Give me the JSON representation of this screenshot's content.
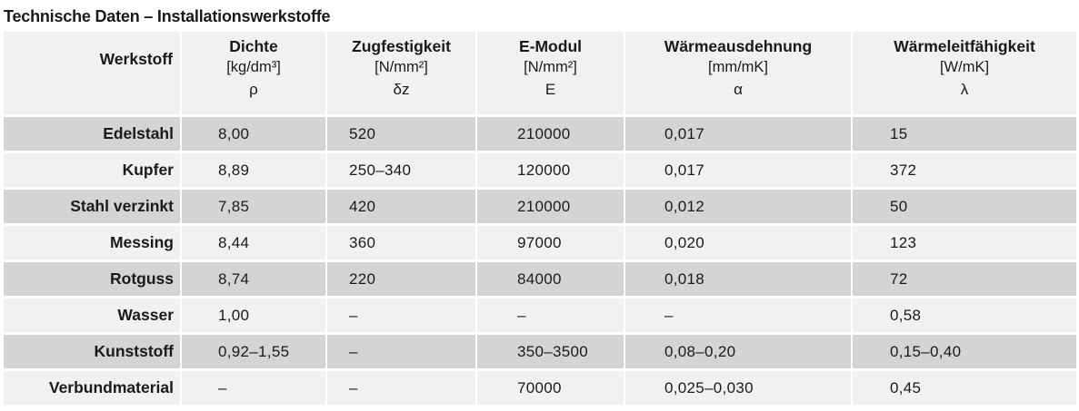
{
  "title": "Technische Daten – Installationswerkstoffe",
  "header": {
    "material": "Werkstoff",
    "columns": [
      {
        "name": "Dichte",
        "unit": "[kg/dm³]",
        "symbol": "ρ"
      },
      {
        "name": "Zugfestigkeit",
        "unit": "[N/mm²]",
        "symbol": "δz"
      },
      {
        "name": "E-Modul",
        "unit": "[N/mm²]",
        "symbol": "E"
      },
      {
        "name": "Wärmeausdehnung",
        "unit": "[mm/mK]",
        "symbol": "α"
      },
      {
        "name": "Wärmeleitfähigkeit",
        "unit": "[W/mK]",
        "symbol": "λ"
      }
    ]
  },
  "rows": [
    {
      "material": "Edelstahl",
      "values": [
        "8,00",
        "520",
        "210000",
        "0,017",
        "15"
      ]
    },
    {
      "material": "Kupfer",
      "values": [
        "8,89",
        "250–340",
        "120000",
        "0,017",
        "372"
      ]
    },
    {
      "material": "Stahl verzinkt",
      "values": [
        "7,85",
        "420",
        "210000",
        "0,012",
        "50"
      ]
    },
    {
      "material": "Messing",
      "values": [
        "8,44",
        "360",
        "97000",
        "0,020",
        "123"
      ]
    },
    {
      "material": "Rotguss",
      "values": [
        "8,74",
        "220",
        "84000",
        "0,018",
        "72"
      ]
    },
    {
      "material": "Wasser",
      "values": [
        "1,00",
        "–",
        "–",
        "–",
        "0,58"
      ]
    },
    {
      "material": "Kunststoff",
      "values": [
        "0,92–1,55",
        "–",
        "350–3500",
        "0,08–0,20",
        "0,15–0,40"
      ]
    },
    {
      "material": "Verbundmaterial",
      "values": [
        "–",
        "–",
        "70000",
        "0,025–0,030",
        "0,45"
      ]
    }
  ],
  "colors": {
    "row_dark": "#d4d4d4",
    "row_light": "#f1f1f1"
  }
}
